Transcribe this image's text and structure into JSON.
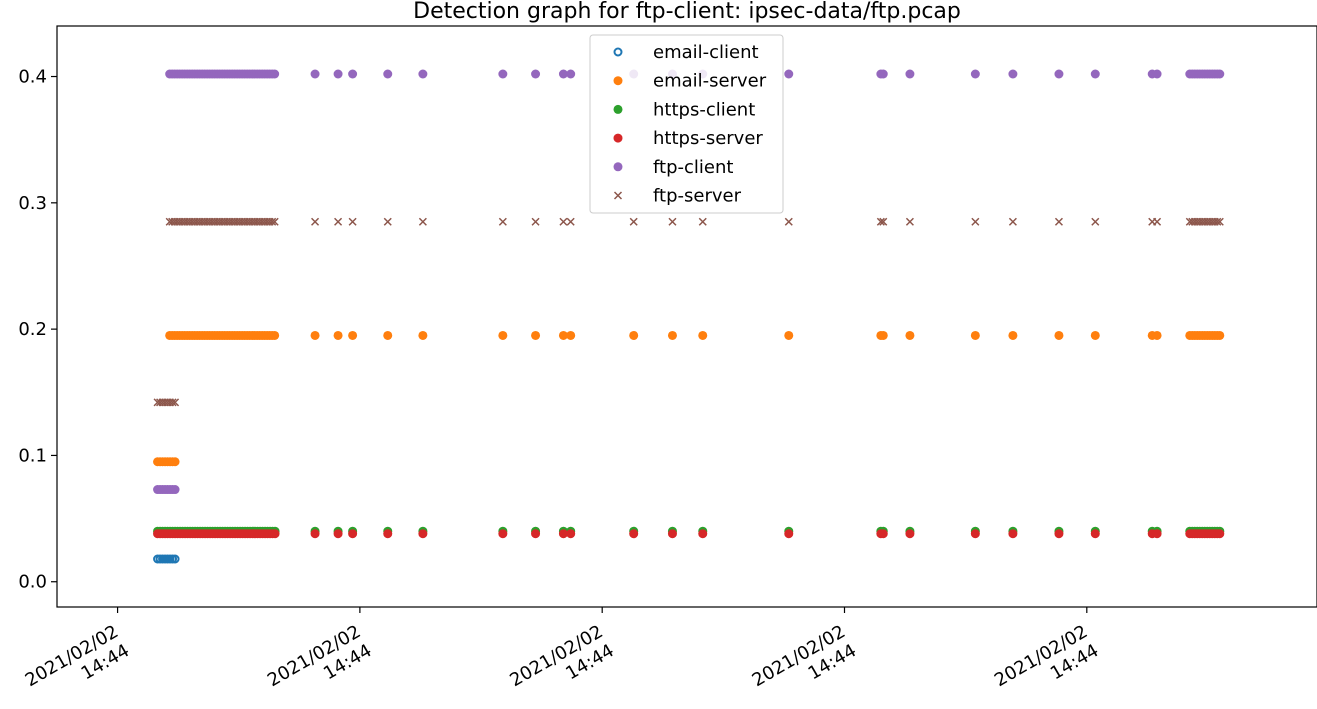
{
  "chart_data": {
    "type": "scatter",
    "title": "Detection graph for ftp-client: ipsec-data/ftp.pcap",
    "xlabel": "",
    "ylabel": "",
    "ylim": [
      -0.02,
      0.44
    ],
    "xlim": [
      0,
      10.4
    ],
    "yticks": [
      0.0,
      0.1,
      0.2,
      0.3,
      0.4
    ],
    "ytick_labels": [
      "0.0",
      "0.1",
      "0.2",
      "0.3",
      "0.4"
    ],
    "xticks": [
      0.5,
      2.5,
      4.5,
      6.5,
      8.5
    ],
    "xtick_labels": [
      [
        "2021/02/02",
        "14:44"
      ],
      [
        "2021/02/02",
        "14:44"
      ],
      [
        "2021/02/02",
        "14:44"
      ],
      [
        "2021/02/02",
        "14:44"
      ],
      [
        "2021/02/02",
        "14:44"
      ]
    ],
    "legend_position": "upper-center",
    "grid": false,
    "series": [
      {
        "name": "email-client",
        "color": "#1f77b4",
        "marker": "o-open",
        "segments": [
          {
            "x_start": 0.83,
            "x_end": 0.98,
            "y": 0.018
          }
        ],
        "points": []
      },
      {
        "name": "email-server",
        "color": "#ff7f0e",
        "marker": "o",
        "segments": [
          {
            "x_start": 0.83,
            "x_end": 0.98,
            "y": 0.095
          },
          {
            "x_start": 0.93,
            "x_end": 1.8,
            "y": 0.195
          },
          {
            "x_start": 9.35,
            "x_end": 9.6,
            "y": 0.195
          }
        ],
        "points_x": [
          2.13,
          2.32,
          2.44,
          2.73,
          3.02,
          3.68,
          3.95,
          4.18,
          4.24,
          4.76,
          5.08,
          5.33,
          6.04,
          6.8,
          6.82,
          7.04,
          7.58,
          7.89,
          8.27,
          8.57,
          9.04,
          9.08
        ],
        "y": 0.195
      },
      {
        "name": "https-client",
        "color": "#2ca02c",
        "marker": "o",
        "segments": [
          {
            "x_start": 0.83,
            "x_end": 1.8,
            "y": 0.04
          },
          {
            "x_start": 9.35,
            "x_end": 9.6,
            "y": 0.04
          }
        ],
        "points_x": [
          2.13,
          2.32,
          2.44,
          2.73,
          3.02,
          3.68,
          3.95,
          4.18,
          4.24,
          4.76,
          5.08,
          5.33,
          6.04,
          6.8,
          6.82,
          7.04,
          7.58,
          7.89,
          8.27,
          8.57,
          9.04,
          9.08
        ],
        "y": 0.04
      },
      {
        "name": "https-server",
        "color": "#d62728",
        "marker": "o",
        "segments": [
          {
            "x_start": 0.83,
            "x_end": 1.8,
            "y": 0.038
          },
          {
            "x_start": 9.35,
            "x_end": 9.6,
            "y": 0.038
          }
        ],
        "points_x": [
          2.13,
          2.32,
          2.44,
          2.73,
          3.02,
          3.68,
          3.95,
          4.18,
          4.24,
          4.76,
          5.08,
          5.33,
          6.04,
          6.8,
          6.82,
          7.04,
          7.58,
          7.89,
          8.27,
          8.57,
          9.04,
          9.08
        ],
        "y": 0.038
      },
      {
        "name": "ftp-client",
        "color": "#9467bd",
        "marker": "o",
        "segments": [
          {
            "x_start": 0.83,
            "x_end": 0.98,
            "y": 0.073
          },
          {
            "x_start": 0.93,
            "x_end": 1.8,
            "y": 0.402
          },
          {
            "x_start": 9.35,
            "x_end": 9.6,
            "y": 0.402
          }
        ],
        "points_x": [
          2.13,
          2.32,
          2.44,
          2.73,
          3.02,
          3.68,
          3.95,
          4.18,
          4.24,
          4.76,
          5.08,
          5.33,
          6.04,
          6.8,
          6.82,
          7.04,
          7.58,
          7.89,
          8.27,
          8.57,
          9.04,
          9.08
        ],
        "y": 0.402
      },
      {
        "name": "ftp-server",
        "color": "#8c564b",
        "marker": "x",
        "segments": [
          {
            "x_start": 0.83,
            "x_end": 0.98,
            "y": 0.142
          },
          {
            "x_start": 0.93,
            "x_end": 1.8,
            "y": 0.285
          },
          {
            "x_start": 9.35,
            "x_end": 9.6,
            "y": 0.285
          }
        ],
        "points_x": [
          2.13,
          2.32,
          2.44,
          2.73,
          3.02,
          3.68,
          3.95,
          4.18,
          4.24,
          4.76,
          5.08,
          5.33,
          6.04,
          6.8,
          6.82,
          7.04,
          7.58,
          7.89,
          8.27,
          8.57,
          9.04,
          9.08
        ],
        "y": 0.285
      }
    ]
  }
}
